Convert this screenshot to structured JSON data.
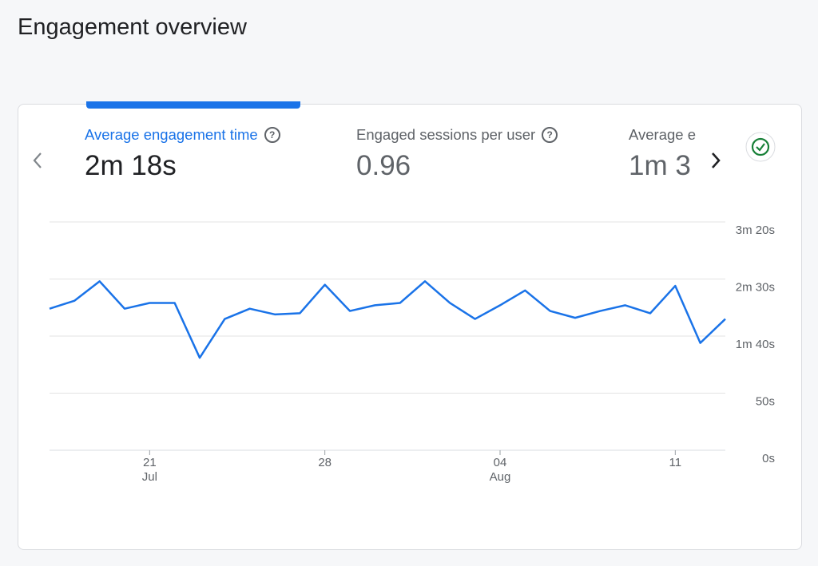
{
  "header": {
    "title": "Engagement overview"
  },
  "tabs": [
    {
      "label": "Average engagement time",
      "value": "2m 18s"
    },
    {
      "label": "Engaged sessions per user",
      "value": "0.96"
    },
    {
      "label": "Average e",
      "value": "1m 3"
    }
  ],
  "chart_data": {
    "type": "line",
    "color": "#1a73e8",
    "categories": [
      null,
      null,
      null,
      null,
      "21",
      null,
      null,
      null,
      null,
      null,
      null,
      "28",
      null,
      null,
      null,
      null,
      null,
      null,
      "04",
      null,
      null,
      null,
      null,
      null,
      null,
      "11",
      null,
      null
    ],
    "months": [
      null,
      null,
      null,
      null,
      "Jul",
      null,
      null,
      null,
      null,
      null,
      null,
      null,
      null,
      null,
      null,
      null,
      null,
      null,
      "Aug",
      null,
      null,
      null,
      null,
      null,
      null,
      null,
      null,
      null
    ],
    "values": [
      124,
      131,
      148,
      124,
      129,
      129,
      81,
      115,
      124,
      119,
      120,
      145,
      122,
      127,
      129,
      148,
      129,
      115,
      127,
      140,
      122,
      116,
      122,
      127,
      120,
      144,
      94,
      115
    ],
    "ylim": [
      0,
      200
    ],
    "yticks": [
      {
        "value": 0,
        "label": "0s"
      },
      {
        "value": 50,
        "label": "50s"
      },
      {
        "value": 100,
        "label": "1m 40s"
      },
      {
        "value": 150,
        "label": "2m 30s"
      },
      {
        "value": 200,
        "label": "3m 20s"
      }
    ],
    "grid": true
  }
}
